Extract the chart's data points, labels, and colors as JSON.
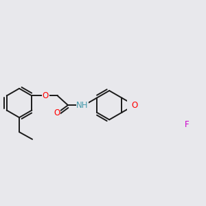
{
  "bg_color": "#e8e8ec",
  "bond_color": "#1a1a1a",
  "bond_width": 1.4,
  "dbo": 0.018,
  "atom_colors": {
    "O": "#ff0000",
    "N": "#0000ee",
    "F": "#cc00cc",
    "NH": "#4499aa",
    "C": "#1a1a1a"
  },
  "font_size": 8.5
}
